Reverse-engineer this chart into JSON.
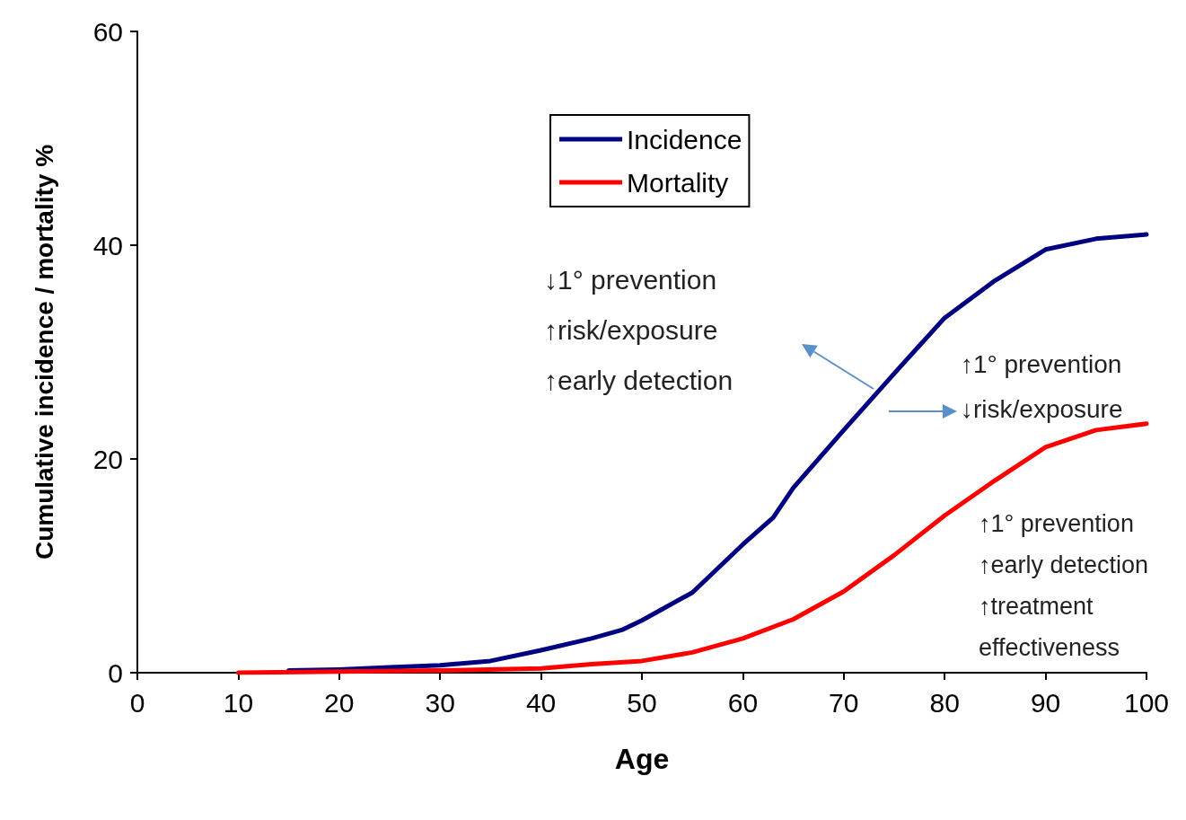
{
  "chart_data": {
    "type": "line",
    "xlabel": "Age",
    "ylabel": "Cumulative incidence / mortality %",
    "xlim": [
      0,
      100
    ],
    "xticks": [
      0,
      10,
      20,
      30,
      40,
      50,
      60,
      70,
      80,
      90,
      100
    ],
    "ylim": [
      0,
      60
    ],
    "yticks": [
      0,
      20,
      40,
      60
    ],
    "grid": false,
    "legend": "top",
    "marker": "none",
    "line_style": "solid",
    "series": [
      {
        "name": "Incidence",
        "color": "#000080",
        "x": [
          15,
          20,
          25,
          30,
          35,
          40,
          45,
          48,
          50,
          55,
          60,
          63,
          65,
          70,
          75,
          80,
          85,
          90,
          95,
          100
        ],
        "values": [
          0.2,
          0.3,
          0.5,
          0.7,
          1.1,
          2.1,
          3.2,
          4,
          4.9,
          7.5,
          12,
          14.5,
          17.3,
          22.7,
          28,
          33.2,
          36.7,
          39.6,
          40.6,
          41
        ]
      },
      {
        "name": "Mortality",
        "color": "#ff0000",
        "x": [
          10,
          20,
          30,
          40,
          45,
          50,
          55,
          60,
          65,
          70,
          75,
          80,
          85,
          90,
          95,
          100
        ],
        "values": [
          0,
          0.1,
          0.2,
          0.4,
          0.8,
          1.1,
          1.9,
          3.2,
          5,
          7.6,
          11,
          14.7,
          18,
          21.1,
          22.7,
          23.3
        ]
      }
    ],
    "annotations": [
      "↓1° prevention\n↑risk/exposure\n↑early detection",
      "↑1° prevention\n↓risk/exposure",
      "↑1° prevention\n↑early detection\n↑treatment\neffectiveness"
    ]
  }
}
